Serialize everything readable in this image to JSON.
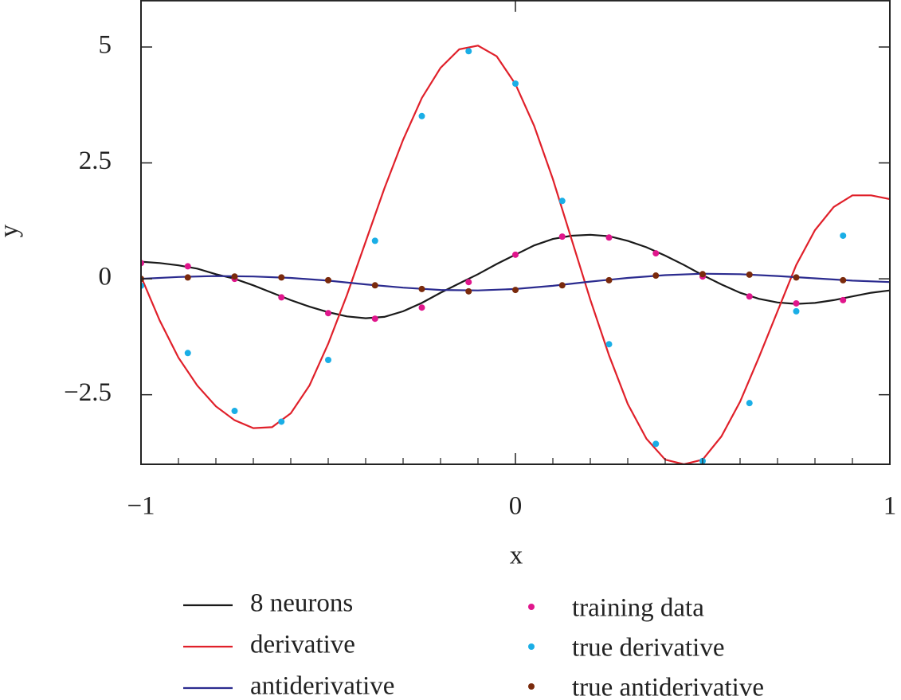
{
  "chart_data": {
    "type": "line",
    "xlabel": "x",
    "ylabel": "y",
    "xlim": [
      -1,
      1
    ],
    "ylim": [
      -4,
      6
    ],
    "xticks": [
      {
        "value": -1,
        "label": "−1"
      },
      0,
      1
    ],
    "xminorticks": [
      -0.9,
      -0.8,
      -0.7,
      -0.6,
      -0.5,
      -0.4,
      -0.3,
      -0.2,
      -0.1,
      0.1,
      0.2,
      0.3,
      0.4,
      0.5,
      0.6,
      0.7,
      0.8,
      0.9
    ],
    "yticks": [
      {
        "value": -2.5,
        "label": "−2.5"
      },
      0,
      2.5,
      5
    ],
    "series": [
      {
        "name": "8 neurons",
        "style": "line",
        "color": "#1a1a1a",
        "x": [
          -1,
          -0.95,
          -0.9,
          -0.85,
          -0.8,
          -0.75,
          -0.7,
          -0.65,
          -0.6,
          -0.55,
          -0.5,
          -0.45,
          -0.4,
          -0.35,
          -0.3,
          -0.25,
          -0.2,
          -0.15,
          -0.1,
          -0.05,
          0,
          0.05,
          0.1,
          0.15,
          0.2,
          0.25,
          0.3,
          0.35,
          0.4,
          0.45,
          0.5,
          0.55,
          0.6,
          0.65,
          0.7,
          0.75,
          0.8,
          0.85,
          0.9,
          0.95,
          1
        ],
        "values": [
          0.37,
          0.34,
          0.29,
          0.22,
          0.1,
          0,
          -0.14,
          -0.3,
          -0.46,
          -0.6,
          -0.72,
          -0.81,
          -0.85,
          -0.82,
          -0.7,
          -0.52,
          -0.3,
          -0.1,
          0.1,
          0.32,
          0.52,
          0.72,
          0.86,
          0.93,
          0.95,
          0.92,
          0.82,
          0.68,
          0.5,
          0.3,
          0.08,
          -0.12,
          -0.3,
          -0.43,
          -0.51,
          -0.54,
          -0.52,
          -0.46,
          -0.38,
          -0.3,
          -0.25
        ]
      },
      {
        "name": "derivative",
        "style": "line",
        "color": "#e0202a",
        "x": [
          -1,
          -0.95,
          -0.9,
          -0.85,
          -0.8,
          -0.75,
          -0.7,
          -0.65,
          -0.6,
          -0.55,
          -0.5,
          -0.45,
          -0.4,
          -0.35,
          -0.3,
          -0.25,
          -0.2,
          -0.15,
          -0.1,
          -0.05,
          0,
          0.05,
          0.1,
          0.15,
          0.2,
          0.25,
          0.3,
          0.35,
          0.4,
          0.45,
          0.5,
          0.55,
          0.6,
          0.65,
          0.7,
          0.75,
          0.8,
          0.85,
          0.9,
          0.95,
          1
        ],
        "values": [
          0.05,
          -0.9,
          -1.7,
          -2.3,
          -2.75,
          -3.05,
          -3.22,
          -3.2,
          -2.9,
          -2.3,
          -1.4,
          -0.35,
          0.8,
          1.95,
          3.0,
          3.9,
          4.55,
          4.95,
          5.03,
          4.8,
          4.2,
          3.3,
          2.15,
          0.85,
          -0.45,
          -1.65,
          -2.7,
          -3.45,
          -3.9,
          -4.0,
          -3.9,
          -3.4,
          -2.65,
          -1.7,
          -0.7,
          0.3,
          1.05,
          1.55,
          1.8,
          1.8,
          1.72
        ]
      },
      {
        "name": "antiderivative",
        "style": "line",
        "color": "#2b2b8f",
        "x": [
          -1,
          -0.9,
          -0.8,
          -0.7,
          -0.6,
          -0.5,
          -0.4,
          -0.3,
          -0.2,
          -0.1,
          0,
          0.1,
          0.2,
          0.3,
          0.4,
          0.5,
          0.6,
          0.7,
          0.8,
          0.9,
          1
        ],
        "values": [
          0,
          0.04,
          0.06,
          0.05,
          0.02,
          -0.04,
          -0.12,
          -0.19,
          -0.24,
          -0.25,
          -0.22,
          -0.15,
          -0.06,
          0.02,
          0.08,
          0.11,
          0.1,
          0.06,
          0.01,
          -0.04,
          -0.07
        ]
      },
      {
        "name": "training data",
        "style": "markers",
        "color": "#e0168c",
        "x": [
          -1,
          -0.875,
          -0.75,
          -0.625,
          -0.5,
          -0.375,
          -0.25,
          -0.125,
          0,
          0.125,
          0.25,
          0.375,
          0.5,
          0.625,
          0.75,
          0.875
        ],
        "values": [
          0.34,
          0.27,
          0,
          -0.4,
          -0.74,
          -0.86,
          -0.62,
          -0.07,
          0.52,
          0.91,
          0.89,
          0.55,
          0.05,
          -0.38,
          -0.53,
          -0.46
        ]
      },
      {
        "name": "true derivative",
        "style": "markers",
        "color": "#1aaee6",
        "x": [
          -1,
          -0.875,
          -0.75,
          -0.625,
          -0.5,
          -0.375,
          -0.25,
          -0.125,
          0,
          0.125,
          0.25,
          0.375,
          0.5,
          0.625,
          0.75,
          0.875
        ],
        "values": [
          -0.15,
          -1.6,
          -2.85,
          -3.08,
          -1.75,
          0.82,
          3.51,
          4.91,
          4.21,
          1.68,
          -1.41,
          -3.56,
          -3.93,
          -2.68,
          -0.7,
          0.93
        ]
      },
      {
        "name": "true antiderivative",
        "style": "markers",
        "color": "#7a2a0c",
        "x": [
          -1,
          -0.875,
          -0.75,
          -0.625,
          -0.5,
          -0.375,
          -0.25,
          -0.125,
          0,
          0.125,
          0.25,
          0.375,
          0.5,
          0.625,
          0.75,
          0.875
        ],
        "values": [
          0,
          0.03,
          0.05,
          0.03,
          -0.03,
          -0.14,
          -0.22,
          -0.27,
          -0.24,
          -0.14,
          -0.03,
          0.07,
          0.1,
          0.09,
          0.03,
          -0.03
        ]
      }
    ]
  }
}
